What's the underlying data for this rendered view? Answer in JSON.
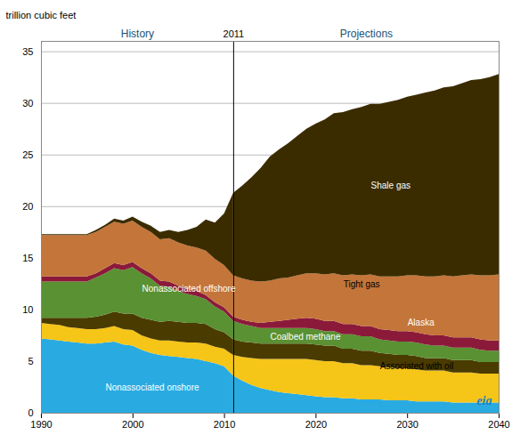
{
  "chart_data": {
    "type": "area",
    "stacked": true,
    "grid": true,
    "background_color": "#ffffff",
    "ylabel": "trillion cubic feet",
    "xlim": [
      1990,
      2040
    ],
    "xticks": [
      1990,
      2000,
      2010,
      2020,
      2030,
      2040
    ],
    "ylim": [
      0,
      36
    ],
    "yticks": [
      0,
      5,
      10,
      15,
      20,
      25,
      30,
      35
    ],
    "divider": {
      "x": 2011,
      "label": "2011"
    },
    "segments": [
      {
        "name": "History",
        "x": [
          1990,
          1991,
          1992,
          1993,
          1994,
          1995,
          1996,
          1997,
          1998,
          1999,
          2000,
          2001,
          2002,
          2003,
          2004,
          2005,
          2006,
          2007,
          2008,
          2009,
          2010,
          2011
        ],
        "series": [
          {
            "name": "Nonassociated onshore",
            "color": "#29abe2",
            "values": [
              7.2,
              7.1,
              7.0,
              6.9,
              6.8,
              6.7,
              6.7,
              6.8,
              6.9,
              6.6,
              6.5,
              6.1,
              5.8,
              5.6,
              5.5,
              5.4,
              5.3,
              5.2,
              5.0,
              4.8,
              4.5,
              3.6
            ]
          },
          {
            "name": "Associated with oil",
            "color": "#f5c518",
            "values": [
              1.5,
              1.5,
              1.5,
              1.4,
              1.4,
              1.4,
              1.4,
              1.4,
              1.5,
              1.5,
              1.5,
              1.4,
              1.4,
              1.4,
              1.5,
              1.5,
              1.5,
              1.6,
              1.7,
              1.6,
              1.7,
              2.0
            ]
          },
          {
            "name": "Coalbed methane",
            "color": "#4a3b00",
            "values": [
              0.5,
              0.6,
              0.7,
              0.9,
              1.0,
              1.1,
              1.2,
              1.3,
              1.4,
              1.5,
              1.6,
              1.7,
              1.8,
              1.8,
              1.9,
              1.9,
              1.9,
              1.9,
              1.9,
              1.7,
              1.6,
              1.5
            ]
          },
          {
            "name": "Nonassociated offshore",
            "color": "#5a9132",
            "values": [
              3.5,
              3.5,
              3.5,
              3.5,
              3.5,
              3.5,
              3.8,
              4.0,
              4.2,
              4.2,
              4.5,
              4.3,
              4.0,
              3.5,
              3.3,
              3.0,
              2.8,
              2.6,
              2.4,
              2.2,
              2.0,
              1.8
            ]
          },
          {
            "name": "Alaska",
            "color": "#8b1a3a",
            "values": [
              0.5,
              0.5,
              0.5,
              0.5,
              0.5,
              0.5,
              0.4,
              0.5,
              0.5,
              0.5,
              0.5,
              0.5,
              0.5,
              0.5,
              0.5,
              0.5,
              0.5,
              0.5,
              0.4,
              0.4,
              0.4,
              0.4
            ]
          },
          {
            "name": "Tight gas",
            "color": "#c4753a",
            "values": [
              4.0,
              4.0,
              4.0,
              4.0,
              4.0,
              4.0,
              4.0,
              4.0,
              4.0,
              4.0,
              4.0,
              4.0,
              4.0,
              4.0,
              4.2,
              4.2,
              4.2,
              4.2,
              4.3,
              4.2,
              4.1,
              4.0
            ]
          },
          {
            "name": "Shale gas",
            "color": "#3b2c00",
            "values": [
              0.1,
              0.1,
              0.1,
              0.1,
              0.1,
              0.1,
              0.2,
              0.2,
              0.3,
              0.3,
              0.4,
              0.5,
              0.6,
              0.7,
              0.8,
              1.0,
              1.5,
              2.0,
              3.0,
              3.5,
              5.0,
              8.0
            ]
          }
        ]
      },
      {
        "name": "Projections",
        "x": [
          2011,
          2012,
          2013,
          2014,
          2015,
          2016,
          2017,
          2018,
          2019,
          2020,
          2021,
          2022,
          2023,
          2024,
          2025,
          2026,
          2027,
          2028,
          2029,
          2030,
          2031,
          2032,
          2033,
          2034,
          2035,
          2036,
          2037,
          2038,
          2039,
          2040
        ],
        "series": [
          {
            "name": "Nonassociated onshore",
            "color": "#29abe2",
            "values": [
              3.6,
              3.1,
              2.7,
              2.4,
              2.2,
              2.0,
              1.9,
              1.8,
              1.7,
              1.6,
              1.5,
              1.5,
              1.4,
              1.4,
              1.3,
              1.3,
              1.3,
              1.2,
              1.2,
              1.2,
              1.1,
              1.1,
              1.1,
              1.1,
              1.0,
              1.0,
              1.0,
              1.0,
              1.0,
              1.0
            ]
          },
          {
            "name": "Associated with oil",
            "color": "#f5c518",
            "values": [
              2.0,
              2.3,
              2.6,
              2.8,
              3.0,
              3.2,
              3.3,
              3.4,
              3.5,
              3.5,
              3.5,
              3.5,
              3.4,
              3.4,
              3.3,
              3.3,
              3.2,
              3.2,
              3.1,
              3.1,
              3.1,
              3.0,
              3.0,
              3.0,
              2.9,
              2.9,
              2.9,
              2.8,
              2.8,
              2.8
            ]
          },
          {
            "name": "Coalbed methane",
            "color": "#4a3b00",
            "values": [
              1.5,
              1.5,
              1.5,
              1.5,
              1.5,
              1.5,
              1.5,
              1.5,
              1.5,
              1.5,
              1.5,
              1.5,
              1.4,
              1.4,
              1.4,
              1.4,
              1.3,
              1.3,
              1.3,
              1.3,
              1.3,
              1.2,
              1.2,
              1.2,
              1.2,
              1.2,
              1.2,
              1.1,
              1.1,
              1.1
            ]
          },
          {
            "name": "Nonassociated offshore",
            "color": "#5a9132",
            "values": [
              1.8,
              1.7,
              1.6,
              1.5,
              1.5,
              1.5,
              1.5,
              1.5,
              1.5,
              1.5,
              1.4,
              1.4,
              1.4,
              1.4,
              1.4,
              1.4,
              1.3,
              1.3,
              1.3,
              1.3,
              1.3,
              1.3,
              1.2,
              1.2,
              1.2,
              1.2,
              1.2,
              1.2,
              1.1,
              1.1
            ]
          },
          {
            "name": "Alaska",
            "color": "#8b1a3a",
            "values": [
              0.4,
              0.4,
              0.4,
              0.5,
              0.6,
              0.7,
              0.8,
              0.9,
              1.0,
              1.0,
              1.0,
              1.0,
              1.0,
              1.0,
              1.0,
              1.0,
              1.0,
              1.0,
              1.0,
              1.0,
              1.0,
              1.0,
              1.0,
              1.0,
              1.0,
              1.0,
              1.0,
              1.0,
              1.0,
              1.0
            ]
          },
          {
            "name": "Tight gas",
            "color": "#c4753a",
            "values": [
              4.0,
              4.0,
              4.0,
              4.0,
              4.0,
              4.1,
              4.1,
              4.2,
              4.3,
              4.4,
              4.5,
              4.6,
              4.7,
              4.8,
              4.9,
              5.0,
              5.1,
              5.2,
              5.3,
              5.4,
              5.5,
              5.6,
              5.7,
              5.8,
              5.9,
              6.0,
              6.1,
              6.2,
              6.3,
              6.4
            ]
          },
          {
            "name": "Shale gas",
            "color": "#3b2c00",
            "values": [
              8.0,
              9.0,
              10.0,
              11.0,
              12.0,
              12.5,
              13.0,
              13.5,
              14.0,
              14.5,
              15.0,
              15.5,
              15.8,
              16.0,
              16.3,
              16.5,
              16.7,
              16.9,
              17.1,
              17.3,
              17.5,
              17.8,
              18.0,
              18.2,
              18.4,
              18.6,
              18.8,
              19.0,
              19.2,
              19.4
            ]
          }
        ]
      }
    ],
    "annotations": [
      {
        "text": "Nonassociated onshore",
        "x": 1997,
        "y": 2.5,
        "color": "#ffffff"
      },
      {
        "text": "Nonassociated offshore",
        "x": 2001,
        "y": 12.0,
        "color": "#ffffff"
      },
      {
        "text": "Tight gas",
        "x": 2023,
        "y": 12.5,
        "color": "#000000"
      },
      {
        "text": "Alaska",
        "x": 2030,
        "y": 8.8,
        "color": "#ffffff"
      },
      {
        "text": "Coalbed methane",
        "x": 2015,
        "y": 7.4,
        "color": "#ffffff"
      },
      {
        "text": "Associated with oil",
        "x": 2027,
        "y": 4.5,
        "color": "#000000"
      },
      {
        "text": "Shale gas",
        "x": 2026,
        "y": 22.0,
        "color": "#ffffff"
      }
    ],
    "logo": {
      "text": "eia",
      "color": "#1a7fc1"
    }
  }
}
